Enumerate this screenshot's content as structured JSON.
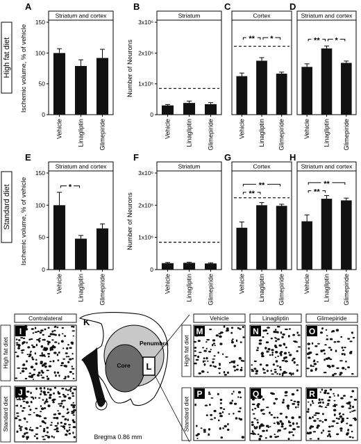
{
  "row_labels": [
    "High fat diet",
    "Standard diet"
  ],
  "neuron_axis": {
    "ylabel": "Number of Neurons",
    "ticks": [
      "0",
      "1x10⁶",
      "2x10⁶",
      "3x10⁶"
    ],
    "ylim": [
      0,
      3000000
    ]
  },
  "volume_axis": {
    "ylabel": "Ischemic volume, % of vehicle",
    "ticks": [
      "0",
      "50",
      "100",
      "150"
    ],
    "ylim": [
      0,
      150
    ]
  },
  "categories": [
    "Vehicle",
    "Linagliptin",
    "Glimepiride"
  ],
  "chart_data": [
    {
      "type": "bar",
      "panel": "A",
      "header": "Striatum and cortex",
      "ylabel": "Ischemic volume, % of vehicle",
      "ylim": [
        0,
        150
      ],
      "categories": [
        "Vehicle",
        "Linagliptin",
        "Glimepiride"
      ],
      "values": [
        100,
        79,
        92
      ],
      "errors": [
        7,
        10,
        14
      ],
      "reference_line": null,
      "significance": []
    },
    {
      "type": "bar",
      "panel": "B",
      "header": "Striatum",
      "ylabel": "Number of Neurons",
      "ylim": [
        0,
        3000000
      ],
      "categories": [
        "Vehicle",
        "Linagliptin",
        "Glimepiride"
      ],
      "values": [
        300000,
        380000,
        340000
      ],
      "errors": [
        30000,
        60000,
        50000
      ],
      "reference_line": 850000,
      "significance": []
    },
    {
      "type": "bar",
      "panel": "C",
      "header": "Cortex",
      "ylabel": "Number of Neurons",
      "ylim": [
        0,
        3000000
      ],
      "categories": [
        "Vehicle",
        "Linagliptin",
        "Glimepiride"
      ],
      "values": [
        1250000,
        1750000,
        1330000
      ],
      "errors": [
        100000,
        100000,
        50000
      ],
      "reference_line": 2220000,
      "significance": [
        {
          "from": 0,
          "to": 1,
          "label": "**",
          "level": 2500000
        },
        {
          "from": 1,
          "to": 2,
          "label": "*",
          "level": 2500000
        }
      ]
    },
    {
      "type": "bar",
      "panel": "D",
      "header": "Striatum and cortex",
      "ylabel": "Number of Neurons",
      "ylim": [
        0,
        3000000
      ],
      "categories": [
        "Vehicle",
        "Linagliptin",
        "Glimepiride"
      ],
      "values": [
        1550000,
        2150000,
        1680000
      ],
      "errors": [
        100000,
        80000,
        60000
      ],
      "reference_line": null,
      "significance": [
        {
          "from": 0,
          "to": 1,
          "label": "**",
          "level": 2450000
        },
        {
          "from": 1,
          "to": 2,
          "label": "*",
          "level": 2450000
        }
      ]
    },
    {
      "type": "bar",
      "panel": "E",
      "header": "Striatum and cortex",
      "ylabel": "Ischemic volume, % of vehicle",
      "ylim": [
        0,
        150
      ],
      "categories": [
        "Vehicle",
        "Linagliptin",
        "Glimepiride"
      ],
      "values": [
        100,
        48,
        64
      ],
      "errors": [
        20,
        5,
        7
      ],
      "reference_line": null,
      "significance": [
        {
          "from": 0,
          "to": 1,
          "label": "*",
          "level": 130
        }
      ]
    },
    {
      "type": "bar",
      "panel": "F",
      "header": "Striatum",
      "ylabel": "Number of Neurons",
      "ylim": [
        0,
        3000000
      ],
      "categories": [
        "Vehicle",
        "Linagliptin",
        "Glimepiride"
      ],
      "values": [
        200000,
        210000,
        190000
      ],
      "errors": [
        20000,
        20000,
        20000
      ],
      "reference_line": 850000,
      "significance": []
    },
    {
      "type": "bar",
      "panel": "G",
      "header": "Cortex",
      "ylabel": "Number of Neurons",
      "ylim": [
        0,
        3000000
      ],
      "categories": [
        "Vehicle",
        "Linagliptin",
        "Glimepiride"
      ],
      "values": [
        1300000,
        2000000,
        1980000
      ],
      "errors": [
        180000,
        80000,
        50000
      ],
      "reference_line": 2230000,
      "significance": [
        {
          "from": 0,
          "to": 1,
          "label": "**",
          "level": 2400000
        },
        {
          "from": 0,
          "to": 2,
          "label": "**",
          "level": 2650000
        }
      ]
    },
    {
      "type": "bar",
      "panel": "H",
      "header": "Striatum and cortex",
      "ylabel": "Number of Neurons",
      "ylim": [
        0,
        3000000
      ],
      "categories": [
        "Vehicle",
        "Linagliptin",
        "Glimepiride"
      ],
      "values": [
        1500000,
        2200000,
        2150000
      ],
      "errors": [
        200000,
        100000,
        70000
      ],
      "reference_line": null,
      "significance": [
        {
          "from": 0,
          "to": 1,
          "label": "**",
          "level": 2450000
        },
        {
          "from": 0,
          "to": 2,
          "label": "**",
          "level": 2700000
        }
      ]
    }
  ],
  "schematic": {
    "letter": "K",
    "labels": [
      "Penumbra",
      "Core",
      "L"
    ],
    "caption": "Bregma 0.86 mm"
  },
  "micrographs": {
    "contralateral_header": "Contralateral",
    "column_headers": [
      "Vehicle",
      "Linagliptin",
      "Glimepiride"
    ],
    "row_labels": [
      "High fat diet",
      "Standard diet"
    ],
    "panels": [
      {
        "letter": "I",
        "density": 1.0
      },
      {
        "letter": "J",
        "density": 1.0
      },
      {
        "letter": "M",
        "density": 0.6
      },
      {
        "letter": "N",
        "density": 0.8
      },
      {
        "letter": "O",
        "density": 0.55
      },
      {
        "letter": "P",
        "density": 0.35
      },
      {
        "letter": "Q",
        "density": 0.75
      },
      {
        "letter": "R",
        "density": 0.8
      }
    ]
  }
}
